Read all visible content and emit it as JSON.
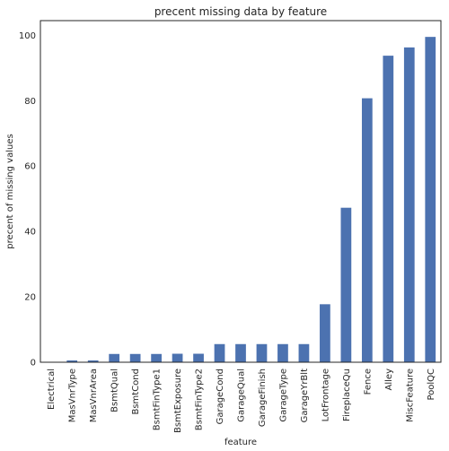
{
  "chart_data": {
    "type": "bar",
    "title": "precent missing data by feature",
    "xlabel": "feature",
    "ylabel": "precent of missing values",
    "categories": [
      "Electrical",
      "MasVnrType",
      "MasVnrArea",
      "BsmtQual",
      "BsmtCond",
      "BsmtFinType1",
      "BsmtExposure",
      "BsmtFinType2",
      "GarageCond",
      "GarageQual",
      "GarageFinish",
      "GarageType",
      "GarageYrBlt",
      "LotFrontage",
      "FireplaceQu",
      "Fence",
      "Alley",
      "MiscFeature",
      "PoolQC"
    ],
    "values": [
      0.07,
      0.55,
      0.55,
      2.53,
      2.53,
      2.53,
      2.6,
      2.6,
      5.55,
      5.55,
      5.55,
      5.55,
      5.55,
      17.74,
      47.26,
      80.75,
      93.77,
      96.3,
      99.52
    ],
    "ylim": [
      0,
      104.5
    ],
    "yticks": [
      0,
      20,
      40,
      60,
      80,
      100
    ],
    "grid": false,
    "colors": {
      "bar": "#4c72b0",
      "axis": "#262626"
    }
  }
}
